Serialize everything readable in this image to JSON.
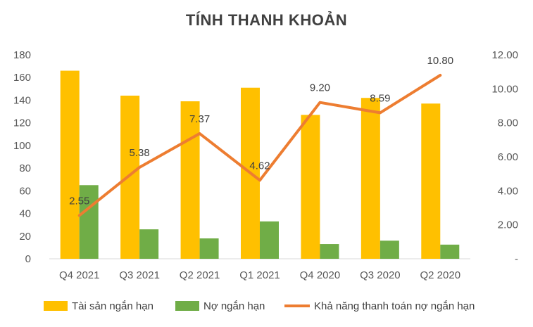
{
  "chart_data": {
    "type": "bar",
    "title": "TÍNH THANH KHOẢN",
    "categories": [
      "Q4 2021",
      "Q3 2021",
      "Q2 2021",
      "Q1 2021",
      "Q4 2020",
      "Q3 2020",
      "Q2 2020"
    ],
    "series": [
      {
        "name": "Tài sản ngắn hạn",
        "type": "bar",
        "axis": "left",
        "color": "#FFC000",
        "values": [
          166,
          144,
          139,
          151,
          127,
          142,
          137
        ]
      },
      {
        "name": "Nợ ngắn hạn",
        "type": "bar",
        "axis": "left",
        "color": "#70AD47",
        "values": [
          65,
          26,
          18,
          33,
          13,
          16,
          12.5
        ]
      },
      {
        "name": "Khả năng thanh toán nợ ngắn hạn",
        "type": "line",
        "axis": "right",
        "color": "#ED7D31",
        "values": [
          2.55,
          5.38,
          7.37,
          4.62,
          9.2,
          8.59,
          10.8
        ],
        "labels": [
          "2.55",
          "5.38",
          "7.37",
          "4.62",
          "9.20",
          "8.59",
          "10.80"
        ]
      }
    ],
    "y_left": {
      "ylim": [
        0,
        180
      ],
      "ticks": [
        "0",
        "20",
        "40",
        "60",
        "80",
        "100",
        "120",
        "140",
        "160",
        "180"
      ]
    },
    "y_right": {
      "ylim": [
        0,
        12
      ],
      "ticks": [
        "-",
        "2.00",
        "4.00",
        "6.00",
        "8.00",
        "10.00",
        "12.00"
      ]
    },
    "grid": false,
    "legend_position": "bottom"
  }
}
